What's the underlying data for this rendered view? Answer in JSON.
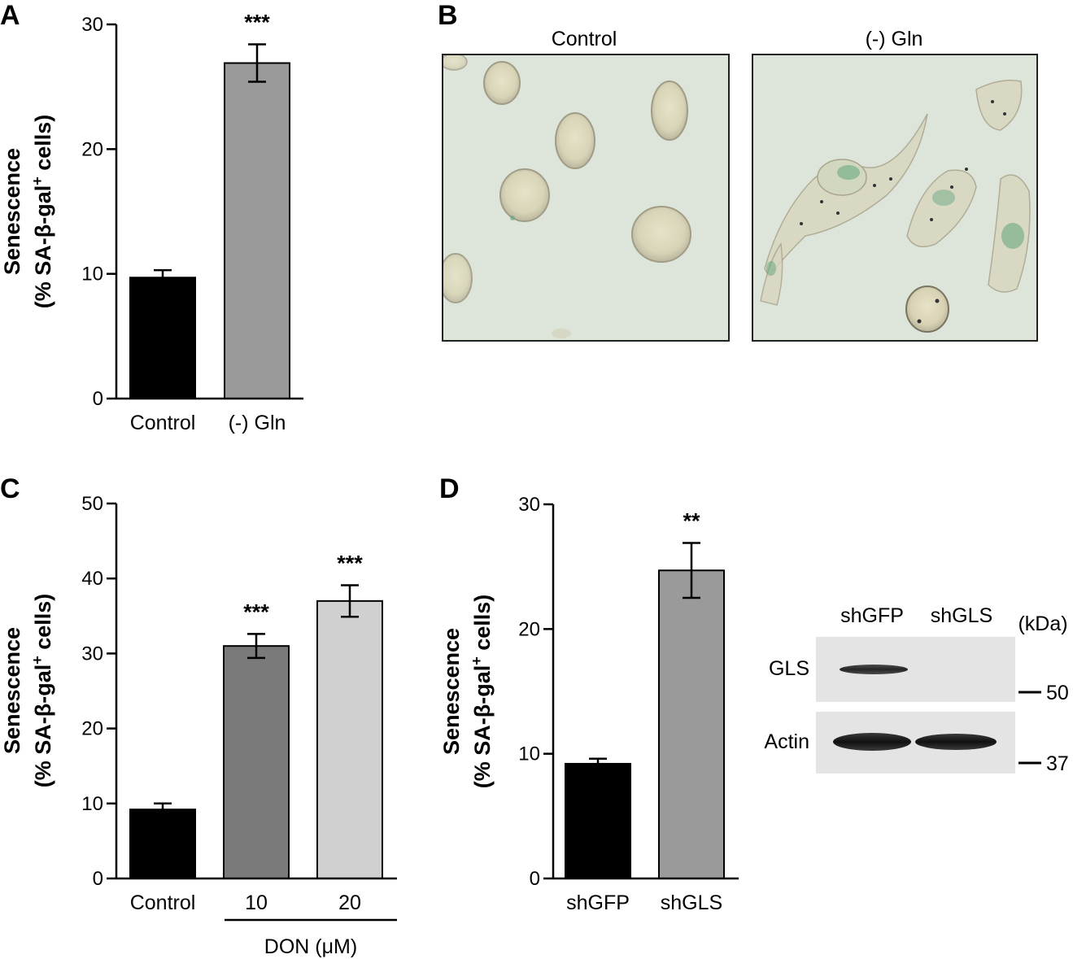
{
  "chart_data": [
    {
      "panel": "A",
      "type": "bar",
      "categories": [
        "Control",
        "(-) Gln"
      ],
      "values": [
        9.7,
        26.9
      ],
      "errors": [
        0.6,
        1.5
      ],
      "bar_colors": [
        "#000000",
        "#9a9a9a"
      ],
      "significance": [
        "",
        "***"
      ],
      "ylabel_line1": "Senescence",
      "ylabel_line2": "(% SA-β-gal",
      "ylabel_sup": "+",
      "ylabel_line2_end": " cells)",
      "ylim": [
        0,
        30
      ],
      "yticks": [
        "0",
        "10",
        "20",
        "30"
      ],
      "grid": false
    },
    {
      "panel": "C",
      "type": "bar",
      "categories": [
        "Control",
        "10",
        "20"
      ],
      "values": [
        9.2,
        31.0,
        37.0
      ],
      "errors": [
        0.8,
        1.6,
        2.1
      ],
      "bar_colors": [
        "#000000",
        "#7a7a7a",
        "#d0d0d0"
      ],
      "significance": [
        "",
        "***",
        "***"
      ],
      "group_label": "DON (μM)",
      "ylabel_line1": "Senescence",
      "ylabel_line2": "(% SA-β-gal",
      "ylabel_sup": "+",
      "ylabel_line2_end": " cells)",
      "ylim": [
        0,
        50
      ],
      "yticks": [
        "0",
        "10",
        "20",
        "30",
        "40",
        "50"
      ],
      "grid": false
    },
    {
      "panel": "D",
      "type": "bar",
      "categories": [
        "shGFP",
        "shGLS"
      ],
      "values": [
        9.2,
        24.7
      ],
      "errors": [
        0.4,
        2.2
      ],
      "bar_colors": [
        "#000000",
        "#9a9a9a"
      ],
      "significance": [
        "",
        "**"
      ],
      "ylabel_line1": "Senescence",
      "ylabel_line2": "(% SA-β-gal",
      "ylabel_sup": "+",
      "ylabel_line2_end": " cells)",
      "ylim": [
        0,
        30
      ],
      "yticks": [
        "0",
        "10",
        "20",
        "30"
      ],
      "grid": false
    }
  ],
  "panel_b": {
    "letter": "B",
    "images": [
      {
        "label": "Control",
        "description": "micrograph-control"
      },
      {
        "label": "(-) Gln",
        "description": "micrograph-gln-deprived"
      }
    ]
  },
  "panel_d_blot": {
    "lanes": [
      "shGFP",
      "shGLS"
    ],
    "unit": "(kDa)",
    "rows": [
      {
        "label": "GLS",
        "marker": "50"
      },
      {
        "label": "Actin",
        "marker": "37"
      }
    ]
  },
  "colors": {
    "black_bar": "#000000",
    "gray_bar": "#9a9a9a",
    "dark_gray_bar": "#7a7a7a",
    "light_gray_bar": "#d0d0d0",
    "micrograph_bg": "#dfe6dc",
    "cell_stain": "#5fa57c"
  }
}
